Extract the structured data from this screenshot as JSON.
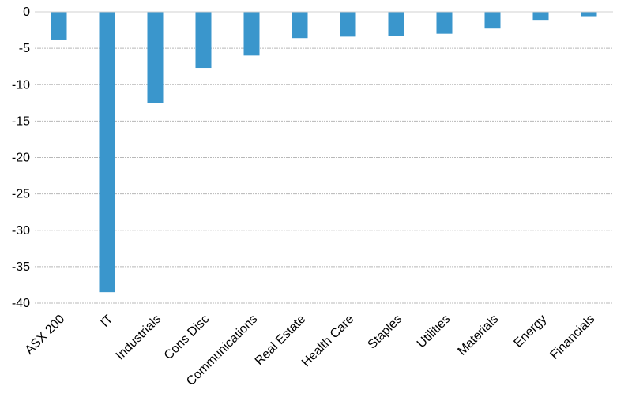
{
  "chart_data": {
    "type": "bar",
    "title": "",
    "xlabel": "",
    "ylabel": "",
    "categories": [
      "ASX 200",
      "IT",
      "Industrials",
      "Cons Disc",
      "Communications",
      "Real Estate",
      "Health Care",
      "Staples",
      "Utilities",
      "Materials",
      "Energy",
      "Financials"
    ],
    "values": [
      -3.9,
      -38.5,
      -12.5,
      -7.7,
      -6.0,
      -3.6,
      -3.4,
      -3.3,
      -3.0,
      -2.3,
      -1.1,
      -0.6
    ],
    "ylim": [
      -40,
      0
    ],
    "yticks": [
      0,
      -5,
      -10,
      -15,
      -20,
      -25,
      -30,
      -35,
      -40
    ],
    "ytick_labels": [
      "0",
      "-5",
      "-10",
      "-15",
      "-20",
      "-25",
      "-30",
      "-35",
      "-40"
    ],
    "grid": true,
    "legend": "none",
    "bar_color": "#3a96cc"
  }
}
